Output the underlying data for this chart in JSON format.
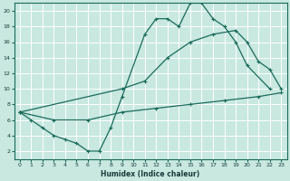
{
  "title": "",
  "xlabel": "Humidex (Indice chaleur)",
  "bg_color": "#c8e8e0",
  "grid_color": "#ffffff",
  "line_color": "#1a6b5a",
  "xlim": [
    -0.5,
    23.5
  ],
  "ylim": [
    1,
    21
  ],
  "xticks": [
    0,
    1,
    2,
    3,
    4,
    5,
    6,
    7,
    8,
    9,
    10,
    11,
    12,
    13,
    14,
    15,
    16,
    17,
    18,
    19,
    20,
    21,
    22,
    23
  ],
  "yticks": [
    2,
    4,
    6,
    8,
    10,
    12,
    14,
    16,
    18,
    20
  ],
  "line1_x": [
    0,
    1,
    2,
    3,
    4,
    5,
    6,
    7,
    8,
    9,
    11,
    12,
    13,
    14,
    15,
    16,
    17,
    18,
    19,
    20,
    22
  ],
  "line1_y": [
    7,
    6,
    5,
    4,
    3.5,
    3,
    2,
    2,
    5,
    9,
    17,
    19,
    19,
    18,
    21,
    21,
    19,
    18,
    16,
    13,
    10
  ],
  "line2_x": [
    0,
    9,
    11,
    13,
    15,
    17,
    19,
    20,
    21,
    22,
    23
  ],
  "line2_y": [
    7,
    10,
    11,
    14,
    16,
    17,
    17.5,
    16,
    13.5,
    12.5,
    10
  ],
  "line3_x": [
    0,
    3,
    6,
    9,
    12,
    15,
    18,
    21,
    23
  ],
  "line3_y": [
    7,
    6,
    6,
    7,
    7.5,
    8,
    8.5,
    9,
    9.5
  ]
}
